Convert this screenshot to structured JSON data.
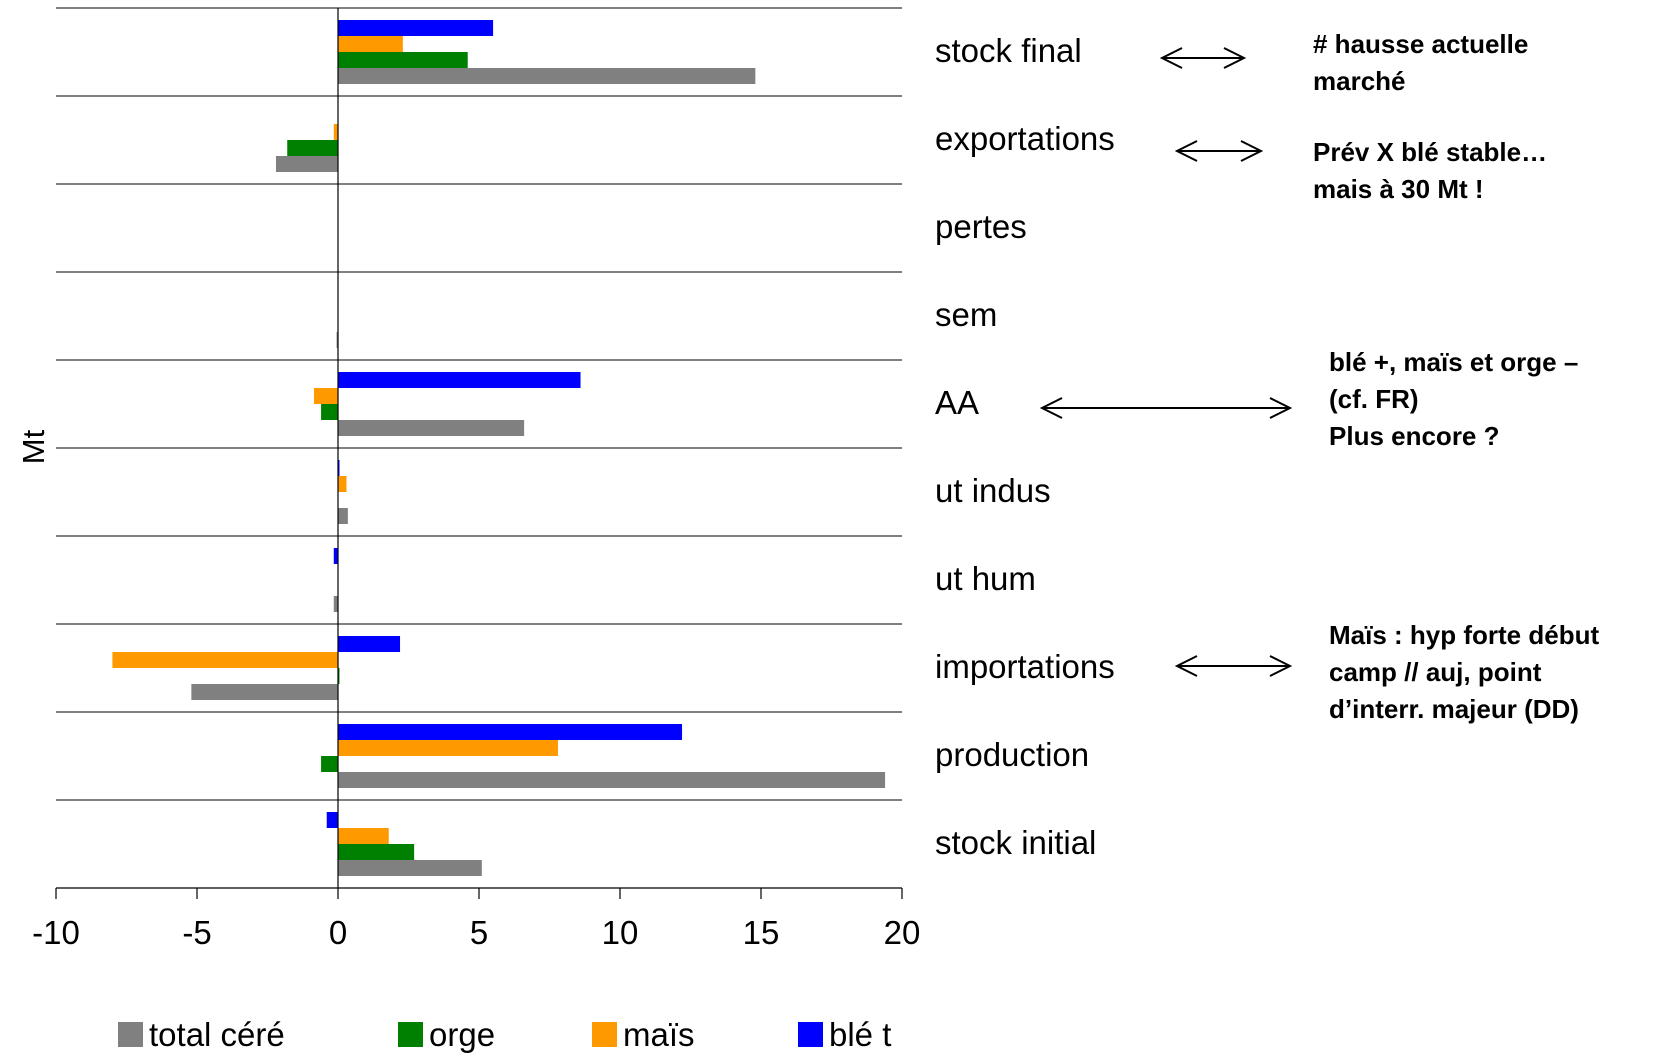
{
  "chart_data": {
    "type": "bar",
    "orientation": "horizontal",
    "ylabel": "Mt",
    "xlim": [
      -10,
      20
    ],
    "xticks": [
      "-10",
      "-5",
      "0",
      "5",
      "10",
      "15",
      "20"
    ],
    "categories": [
      "stock final",
      "exportations",
      "pertes",
      "sem",
      "AA",
      "ut indus",
      "ut hum",
      "importations",
      "production",
      "stock initial"
    ],
    "series": [
      {
        "name": "blé t",
        "color": "#0000FF",
        "values": [
          5.5,
          0,
          0,
          0,
          8.6,
          0.05,
          -0.15,
          2.2,
          12.2,
          -0.4
        ]
      },
      {
        "name": "maïs",
        "color": "#FF9900",
        "values": [
          2.3,
          -0.15,
          0,
          0,
          -0.85,
          0.3,
          0,
          -8.0,
          7.8,
          1.8
        ]
      },
      {
        "name": "orge",
        "color": "#008000",
        "values": [
          4.6,
          -1.8,
          0,
          0,
          -0.6,
          0,
          0,
          0.05,
          -0.6,
          2.7
        ]
      },
      {
        "name": "total céré",
        "color": "#808080",
        "values": [
          14.8,
          -2.2,
          0,
          -0.05,
          6.6,
          0.35,
          -0.15,
          -5.2,
          19.4,
          5.1
        ]
      }
    ],
    "legend": {
      "placement": "bottom",
      "order": [
        "total céré",
        "orge",
        "maïs",
        "blé t"
      ]
    },
    "grid": true
  },
  "annotations": [
    {
      "lines": [
        "# hausse actuelle",
        "marché"
      ],
      "row": 0
    },
    {
      "lines": [
        "Prév X blé stable…",
        "mais à 30 Mt !"
      ],
      "row": 1
    },
    {
      "lines": [
        "blé +, maïs et orge –",
        "(cf. FR)",
        "Plus encore ?"
      ],
      "row": 4
    },
    {
      "lines": [
        "Maïs : hyp forte début",
        "camp // auj, point",
        "d’interr. majeur (DD)"
      ],
      "row": 7
    }
  ]
}
